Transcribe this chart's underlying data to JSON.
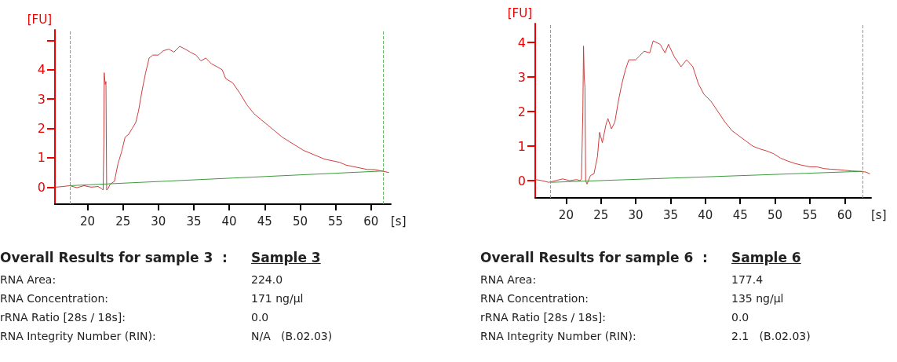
{
  "chart_data": [
    {
      "type": "line",
      "title": "Overall Results for sample 3  :",
      "subtitle": "Sample 3",
      "xlabel": "[s]",
      "ylabel": "[FU]",
      "marker": "none",
      "line_style": "solid",
      "xlim": [
        15.4,
        62.8
      ],
      "ylim": [
        -0.58,
        5.36
      ],
      "xticks": [
        20,
        25,
        30,
        35,
        40,
        45,
        50,
        55,
        60
      ],
      "yticks": [
        0,
        1,
        2,
        3,
        4,
        {
          "value": 5,
          "label": null
        }
      ],
      "ref_lines": [
        {
          "axis": "x",
          "value": 17.5,
          "label": null,
          "color": "#66bb66",
          "line_style": "dashed"
        },
        {
          "axis": "x",
          "value": 61.7,
          "label": null,
          "color": "#66bb66",
          "line_style": "dashed"
        }
      ],
      "series": [
        {
          "color": "#d03c3c",
          "x": [
            15.5,
            16.5,
            17.5,
            18.5,
            19.5,
            20.5,
            21.5,
            22.0,
            22.2,
            22.3,
            22.35,
            22.5,
            22.6,
            22.7,
            22.9,
            23.2,
            23.8,
            24.3,
            24.8,
            25.3,
            25.8,
            26.3,
            26.8,
            27.2,
            27.7,
            28.2,
            28.7,
            29.2,
            30.0,
            30.7,
            31.5,
            32.2,
            33.0,
            33.8,
            34.5,
            35.3,
            36.0,
            36.7,
            37.5,
            38.3,
            39.0,
            39.5,
            40.5,
            41.5,
            42.5,
            43.5,
            44.5,
            45.5,
            46.5,
            47.5,
            48.5,
            49.5,
            50.5,
            51.5,
            52.5,
            53.5,
            54.5,
            55.5,
            56.5,
            57.5,
            58.5,
            59.5,
            60.5,
            61.5,
            62.5
          ],
          "values": [
            0.0,
            0.02,
            0.05,
            -0.02,
            0.05,
            0.0,
            0.02,
            -0.05,
            -0.1,
            1.5,
            3.9,
            3.5,
            3.6,
            -0.1,
            -0.05,
            0.1,
            0.2,
            0.8,
            1.2,
            1.7,
            1.8,
            2.0,
            2.2,
            2.6,
            3.3,
            3.9,
            4.4,
            4.5,
            4.5,
            4.65,
            4.7,
            4.6,
            4.8,
            4.7,
            4.6,
            4.5,
            4.3,
            4.4,
            4.2,
            4.1,
            4.0,
            3.7,
            3.55,
            3.2,
            2.8,
            2.5,
            2.3,
            2.1,
            1.9,
            1.7,
            1.55,
            1.4,
            1.25,
            1.15,
            1.05,
            0.95,
            0.9,
            0.85,
            0.75,
            0.7,
            0.65,
            0.6,
            0.6,
            0.55,
            0.5
          ]
        },
        {
          "color": "#3c9a3c",
          "x": [
            17.5,
            61.7
          ],
          "values": [
            0.05,
            0.55
          ]
        }
      ],
      "annotations": [
        "RNA Area:",
        "224.0",
        "RNA Concentration:",
        "171 ng/µl",
        "rRNA Ratio [28s / 18s]:",
        "0.0",
        "RNA Integrity Number (RIN):",
        "N/A   (B.02.03)"
      ]
    },
    {
      "type": "line",
      "title": "Overall Results for sample 6  :",
      "subtitle": "Sample 6",
      "xlabel": "[s]",
      "ylabel": "[FU]",
      "marker": "none",
      "line_style": "solid",
      "xlim": [
        15.56,
        63.8
      ],
      "ylim": [
        -0.5,
        4.55
      ],
      "xticks": [
        20,
        25,
        30,
        35,
        40,
        45,
        50,
        55,
        60
      ],
      "yticks": [
        0,
        1,
        2,
        3,
        4
      ],
      "ref_lines": [
        {
          "axis": "x",
          "value": 17.75,
          "label": null,
          "color": "#66bb66",
          "line_style": "dashed"
        },
        {
          "axis": "x",
          "value": 62.6,
          "label": null,
          "color": "#66bb66",
          "line_style": "dashed"
        }
      ],
      "series": [
        {
          "color": "#d03c3c",
          "x": [
            15.6,
            16.5,
            17.5,
            18.5,
            19.5,
            20.5,
            21.5,
            22.0,
            22.2,
            22.4,
            22.5,
            22.6,
            22.7,
            22.8,
            23.0,
            23.5,
            24.0,
            24.5,
            24.8,
            25.2,
            25.7,
            26.0,
            26.5,
            27.0,
            27.5,
            28.0,
            28.5,
            29.0,
            30.0,
            30.5,
            31.2,
            32.0,
            32.5,
            33.5,
            34.2,
            34.7,
            35.5,
            36.5,
            37.3,
            38.2,
            39.0,
            39.8,
            40.8,
            41.8,
            42.8,
            43.8,
            44.8,
            45.8,
            46.8,
            47.8,
            48.8,
            49.8,
            50.8,
            51.8,
            52.8,
            53.8,
            55.0,
            56.0,
            57.0,
            58.0,
            59.0,
            60.0,
            61.0,
            62.0,
            63.0,
            63.6
          ],
          "values": [
            0.03,
            0.0,
            -0.05,
            0.0,
            0.05,
            0.0,
            0.03,
            0.0,
            0.05,
            2.0,
            3.9,
            3.0,
            2.7,
            0.0,
            -0.1,
            0.15,
            0.2,
            0.7,
            1.4,
            1.1,
            1.6,
            1.8,
            1.5,
            1.7,
            2.3,
            2.8,
            3.2,
            3.5,
            3.5,
            3.6,
            3.75,
            3.7,
            4.05,
            3.95,
            3.7,
            3.95,
            3.6,
            3.3,
            3.5,
            3.3,
            2.8,
            2.5,
            2.3,
            2.0,
            1.7,
            1.45,
            1.3,
            1.15,
            1.0,
            0.92,
            0.86,
            0.78,
            0.65,
            0.57,
            0.5,
            0.45,
            0.4,
            0.4,
            0.35,
            0.33,
            0.32,
            0.3,
            0.28,
            0.27,
            0.25,
            0.2
          ]
        },
        {
          "color": "#3c9a3c",
          "x": [
            17.75,
            62.6
          ],
          "values": [
            -0.05,
            0.27
          ]
        }
      ],
      "annotations": [
        "RNA Area:",
        "177.4",
        "RNA Concentration:",
        "135 ng/µl",
        "rRNA Ratio [28s / 18s]:",
        "0.0",
        "RNA Integrity Number (RIN):",
        "2.1   (B.02.03)"
      ]
    }
  ]
}
